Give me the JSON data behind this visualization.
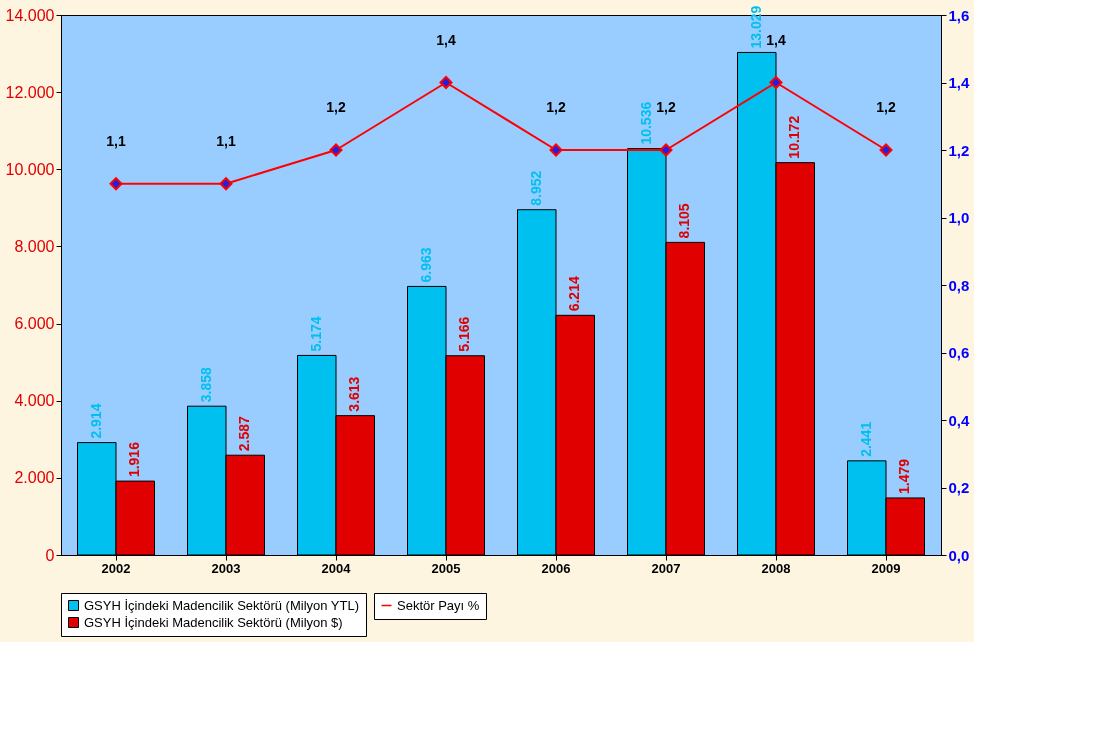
{
  "chart_data": {
    "type": "bar",
    "categories": [
      "2002",
      "2003",
      "2004",
      "2005",
      "2006",
      "2007",
      "2008",
      "2009"
    ],
    "series": [
      {
        "name": "GSYH İçindeki Madencilik Sektörü (Milyon YTL)",
        "color": "#00c0f0",
        "values": [
          2914,
          3858,
          5174,
          6963,
          8952,
          10536,
          13029,
          2441
        ],
        "value_labels": [
          "2.914",
          "3.858",
          "5.174",
          "6.963",
          "8.952",
          "10.536",
          "13.029",
          "2.441"
        ]
      },
      {
        "name": "GSYH İçindeki Madencilik Sektörü (Milyon $)",
        "color": "#e00000",
        "values": [
          1916,
          2587,
          3613,
          5166,
          6214,
          8105,
          10172,
          1479
        ],
        "value_labels": [
          "1.916",
          "2.587",
          "3.613",
          "5.166",
          "6.214",
          "8.105",
          "10.172",
          "1.479"
        ]
      },
      {
        "name": "Sektör Payı %",
        "type": "line",
        "axis": "y2",
        "color": "#ff0000",
        "marker": "diamond",
        "values": [
          1.1,
          1.1,
          1.2,
          1.4,
          1.2,
          1.2,
          1.4,
          1.2
        ],
        "value_labels": [
          "1,1",
          "1,1",
          "1,2",
          "1,4",
          "1,2",
          "1,2",
          "1,4",
          "1,2"
        ]
      }
    ],
    "ylim": [
      0,
      14000
    ],
    "yticks": [
      {
        "value": 0,
        "label": "0"
      },
      {
        "value": 2000,
        "label": "2.000"
      },
      {
        "value": 4000,
        "label": "4.000"
      },
      {
        "value": 6000,
        "label": "6.000"
      },
      {
        "value": 8000,
        "label": "8.000"
      },
      {
        "value": 10000,
        "label": "10.000"
      },
      {
        "value": 12000,
        "label": "12.000"
      },
      {
        "value": 14000,
        "label": "14.000"
      }
    ],
    "y2lim": [
      0,
      1.6
    ],
    "y2ticks": [
      {
        "value": 0,
        "label": "0,0"
      },
      {
        "value": 0.2,
        "label": "0,2"
      },
      {
        "value": 0.4,
        "label": "0,4"
      },
      {
        "value": 0.6,
        "label": "0,6"
      },
      {
        "value": 0.8,
        "label": "0,8"
      },
      {
        "value": 1.0,
        "label": "1,0"
      },
      {
        "value": 1.2,
        "label": "1,2"
      },
      {
        "value": 1.4,
        "label": "1,4"
      },
      {
        "value": 1.6,
        "label": "1,6"
      }
    ],
    "grid": false,
    "legend": "bottom"
  }
}
